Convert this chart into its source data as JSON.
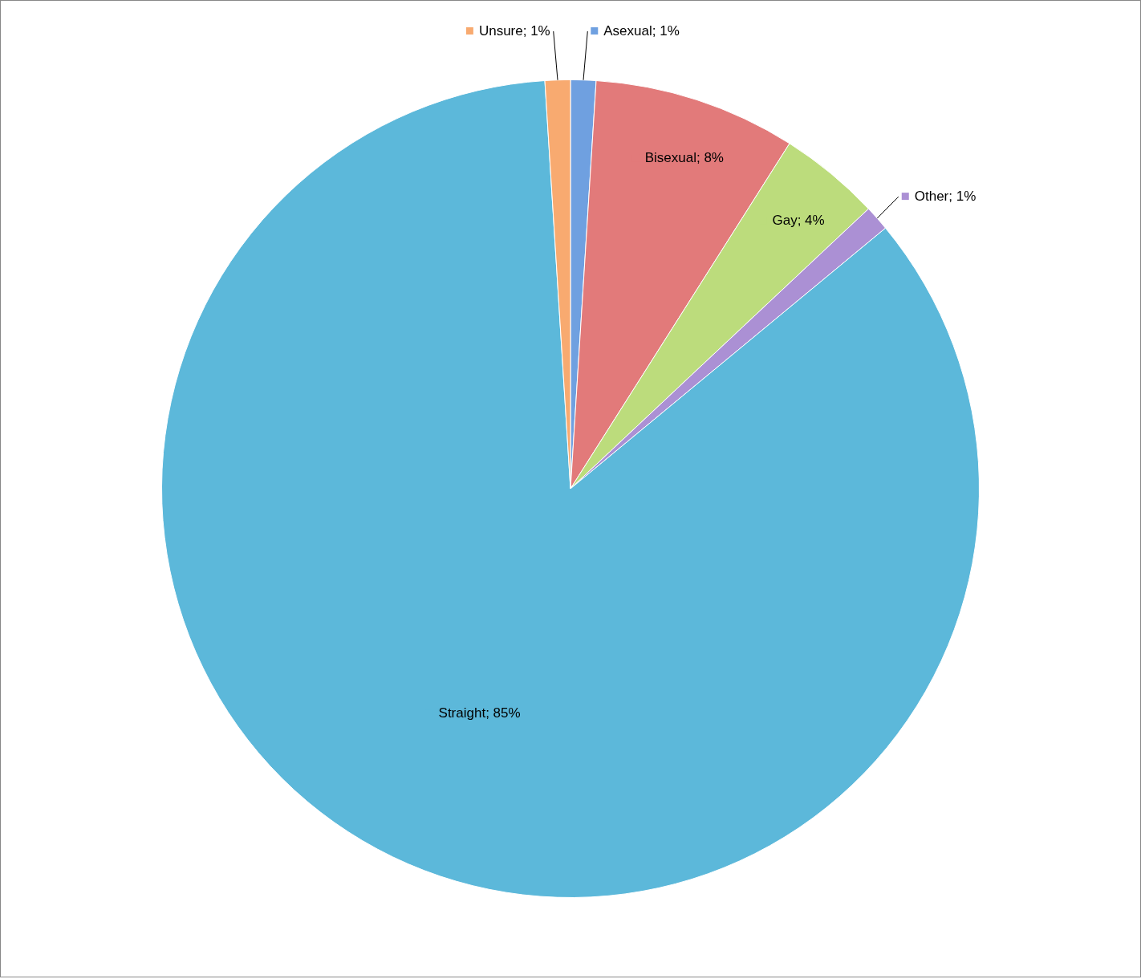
{
  "chart_data": {
    "type": "pie",
    "categories": [
      "Asexual",
      "Bisexual",
      "Gay",
      "Other",
      "Straight",
      "Unsure"
    ],
    "values": [
      1,
      8,
      4,
      1,
      85,
      1
    ],
    "value_labels": [
      "1%",
      "8%",
      "4%",
      "1%",
      "85%",
      "1%"
    ],
    "colors": [
      "#6fa0e0",
      "#e27a7a",
      "#bcdc7c",
      "#ab90d4",
      "#5cb8da",
      "#f8aa70"
    ],
    "legend": "top"
  }
}
